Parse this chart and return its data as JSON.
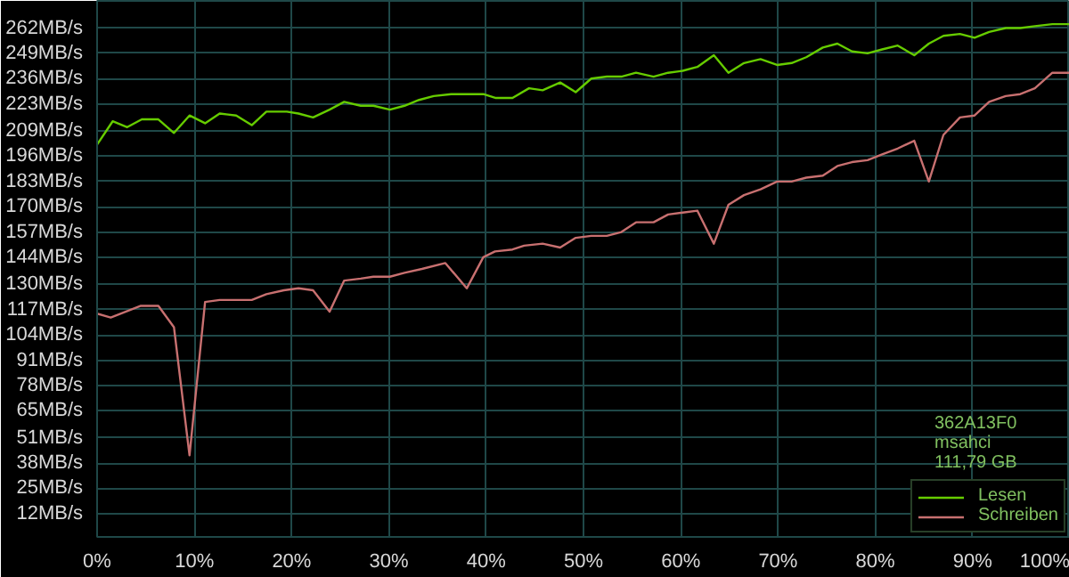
{
  "chart_data": {
    "type": "line",
    "xlim": [
      0,
      100
    ],
    "ylim": [
      0,
      276
    ],
    "xticks": [
      {
        "value": 0,
        "label": "0%"
      },
      {
        "value": 10,
        "label": "10%"
      },
      {
        "value": 20,
        "label": "20%"
      },
      {
        "value": 30,
        "label": "30%"
      },
      {
        "value": 40,
        "label": "40%"
      },
      {
        "value": 50,
        "label": "50%"
      },
      {
        "value": 60,
        "label": "60%"
      },
      {
        "value": 70,
        "label": "70%"
      },
      {
        "value": 80,
        "label": "80%"
      },
      {
        "value": 90,
        "label": "90%"
      },
      {
        "value": 100,
        "label": "100%"
      }
    ],
    "yticks": [
      {
        "value": 12,
        "label": "12MB/s"
      },
      {
        "value": 25,
        "label": "25MB/s"
      },
      {
        "value": 38,
        "label": "38MB/s"
      },
      {
        "value": 51,
        "label": "51MB/s"
      },
      {
        "value": 65,
        "label": "65MB/s"
      },
      {
        "value": 78,
        "label": "78MB/s"
      },
      {
        "value": 91,
        "label": "91MB/s"
      },
      {
        "value": 104,
        "label": "104MB/s"
      },
      {
        "value": 117,
        "label": "117MB/s"
      },
      {
        "value": 130,
        "label": "130MB/s"
      },
      {
        "value": 144,
        "label": "144MB/s"
      },
      {
        "value": 157,
        "label": "157MB/s"
      },
      {
        "value": 170,
        "label": "170MB/s"
      },
      {
        "value": 183,
        "label": "183MB/s"
      },
      {
        "value": 196,
        "label": "196MB/s"
      },
      {
        "value": 209,
        "label": "209MB/s"
      },
      {
        "value": 223,
        "label": "223MB/s"
      },
      {
        "value": 236,
        "label": "236MB/s"
      },
      {
        "value": 249,
        "label": "249MB/s"
      },
      {
        "value": 262,
        "label": "262MB/s"
      }
    ],
    "grid": true,
    "legend": "bottom right",
    "marker": "none",
    "line_style": "solid",
    "annotations": [
      "362A13F0",
      "msahci",
      "111,79 GB"
    ],
    "series": [
      {
        "name": "Lesen",
        "color": "#66cc00",
        "x": [
          0,
          1.6,
          3.1,
          4.6,
          6.3,
          7.9,
          9.5,
          11.1,
          12.6,
          14.3,
          15.9,
          17.4,
          19.5,
          20.7,
          22.2,
          23.9,
          25.4,
          27.1,
          28.4,
          30.1,
          31.6,
          33.1,
          34.6,
          36.4,
          37.9,
          39.7,
          41.0,
          42.7,
          44.4,
          45.8,
          47.6,
          49.2,
          50.8,
          52.4,
          53.9,
          55.4,
          57.2,
          58.7,
          60.2,
          61.7,
          63.4,
          64.9,
          66.5,
          68.2,
          69.9,
          71.4,
          72.9,
          74.6,
          76.1,
          77.6,
          79.2,
          80.7,
          82.3,
          84.0,
          85.5,
          87.0,
          88.7,
          90.2,
          91.7,
          93.4,
          94.9,
          96.4,
          98.2,
          100
        ],
        "values": [
          202,
          214,
          211,
          215,
          215,
          208,
          217,
          213,
          218,
          217,
          212,
          219,
          219,
          218,
          216,
          220,
          224,
          222,
          222,
          220,
          222,
          225,
          227,
          228,
          228,
          228,
          226,
          226,
          231,
          230,
          234,
          229,
          236,
          237,
          237,
          239,
          237,
          239,
          240,
          242,
          248,
          239,
          244,
          246,
          243,
          244,
          247,
          252,
          254,
          250,
          249,
          251,
          253,
          248,
          254,
          258,
          259,
          257,
          260,
          262,
          262,
          263,
          264,
          264
        ]
      },
      {
        "name": "Schreiben",
        "color": "#c87070",
        "x": [
          0,
          1.4,
          4.5,
          6.3,
          7.9,
          9.5,
          11.1,
          12.6,
          15.9,
          17.4,
          19.2,
          20.7,
          22.2,
          23.9,
          25.4,
          27.1,
          28.4,
          30.1,
          31.6,
          33.4,
          35.8,
          38.0,
          39.7,
          40.9,
          42.7,
          43.9,
          45.8,
          47.6,
          49.2,
          50.8,
          52.4,
          53.9,
          55.4,
          57.2,
          58.7,
          60.2,
          61.7,
          63.4,
          64.9,
          66.5,
          68.2,
          69.9,
          71.4,
          72.9,
          74.6,
          76.1,
          77.6,
          79.2,
          80.7,
          82.3,
          84.0,
          85.5,
          87.0,
          88.7,
          90.2,
          91.7,
          93.4,
          94.9,
          96.4,
          98.2,
          100
        ],
        "values": [
          115,
          113,
          119,
          119,
          108,
          42,
          121,
          122,
          122,
          125,
          127,
          128,
          127,
          116,
          132,
          133,
          134,
          134,
          136,
          138,
          141,
          128,
          144,
          147,
          148,
          150,
          151,
          149,
          154,
          155,
          155,
          157,
          162,
          162,
          166,
          167,
          168,
          151,
          171,
          176,
          179,
          183,
          183,
          185,
          186,
          191,
          193,
          194,
          197,
          200,
          204,
          183,
          207,
          216,
          217,
          224,
          227,
          228,
          231,
          239,
          239
        ]
      }
    ]
  }
}
